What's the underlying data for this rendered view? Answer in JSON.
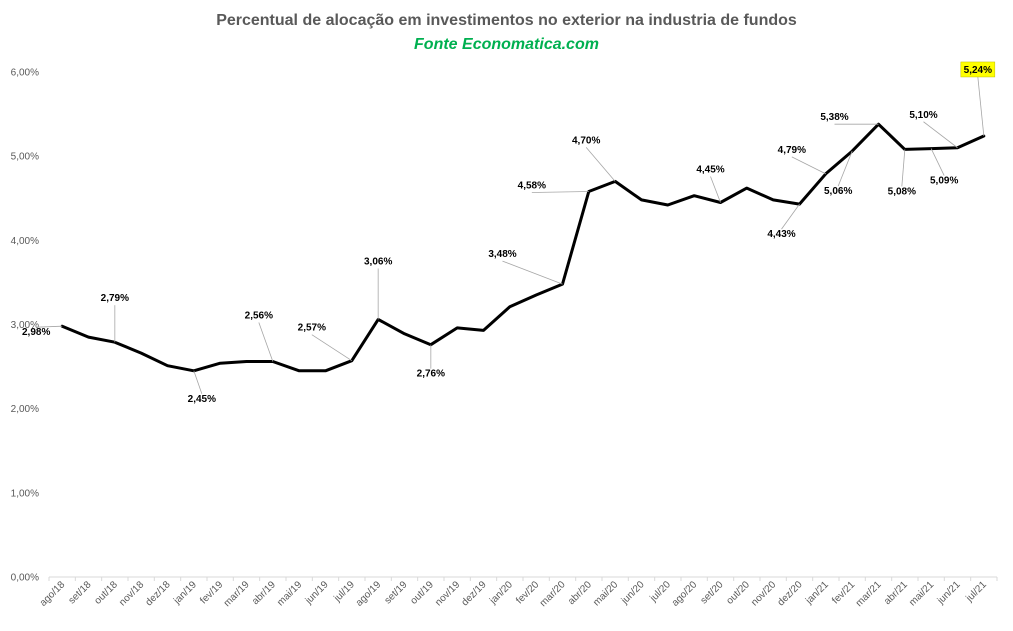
{
  "chart_data": {
    "type": "line",
    "title": "Percentual de alocação em investimentos no exterior na industria de fundos",
    "subtitle": "Fonte Economatica.com",
    "xlabel": "",
    "ylabel": "",
    "ylim": [
      0,
      6
    ],
    "y_ticks": [
      "0,00%",
      "1,00%",
      "2,00%",
      "3,00%",
      "4,00%",
      "5,00%",
      "6,00%"
    ],
    "grid": false,
    "legend": "none",
    "categories": [
      "ago/18",
      "set/18",
      "out/18",
      "nov/18",
      "dez/18",
      "jan/19",
      "fev/19",
      "mar/19",
      "abr/19",
      "mai/19",
      "jun/19",
      "jul/19",
      "ago/19",
      "set/19",
      "out/19",
      "nov/19",
      "dez/19",
      "jan/20",
      "fev/20",
      "mar/20",
      "abr/20",
      "mai/20",
      "jun/20",
      "jul/20",
      "ago/20",
      "set/20",
      "out/20",
      "nov/20",
      "dez/20",
      "jan/21",
      "fev/21",
      "mar/21",
      "abr/21",
      "mai/21",
      "jun/21",
      "jul/21"
    ],
    "series": [
      {
        "values": [
          2.98,
          2.85,
          2.79,
          2.66,
          2.51,
          2.45,
          2.54,
          2.56,
          2.56,
          2.45,
          2.45,
          2.57,
          3.06,
          2.89,
          2.76,
          2.96,
          2.93,
          3.21,
          3.35,
          3.48,
          4.58,
          4.7,
          4.48,
          4.42,
          4.53,
          4.45,
          4.62,
          4.48,
          4.43,
          4.79,
          5.06,
          5.38,
          5.08,
          5.09,
          5.1,
          5.24
        ]
      }
    ],
    "data_labels": [
      {
        "index": 0,
        "text": "2,98%"
      },
      {
        "index": 2,
        "text": "2,79%"
      },
      {
        "index": 5,
        "text": "2,45%"
      },
      {
        "index": 8,
        "text": "2,56%"
      },
      {
        "index": 11,
        "text": "2,57%"
      },
      {
        "index": 12,
        "text": "3,06%"
      },
      {
        "index": 14,
        "text": "2,76%"
      },
      {
        "index": 19,
        "text": "3,48%"
      },
      {
        "index": 20,
        "text": "4,58%"
      },
      {
        "index": 21,
        "text": "4,70%"
      },
      {
        "index": 25,
        "text": "4,45%"
      },
      {
        "index": 28,
        "text": "4,43%"
      },
      {
        "index": 29,
        "text": "4,79%"
      },
      {
        "index": 30,
        "text": "5,06%"
      },
      {
        "index": 31,
        "text": "5,38%"
      },
      {
        "index": 32,
        "text": "5,08%"
      },
      {
        "index": 33,
        "text": "5,09%"
      },
      {
        "index": 34,
        "text": "5,10%"
      },
      {
        "index": 35,
        "text": "5,24%",
        "highlight": "#ffff00"
      }
    ],
    "colors": {
      "line": "#000000",
      "subtitle": "#00b050",
      "title": "#595959",
      "axis": "#d9d9d9",
      "leader": "#a6a6a6"
    }
  }
}
